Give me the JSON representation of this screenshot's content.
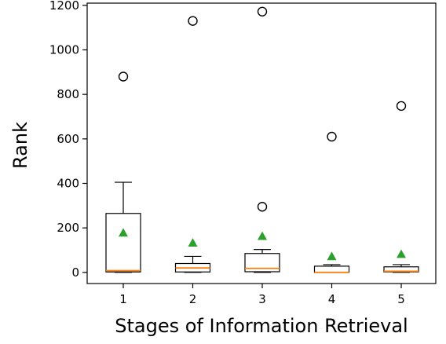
{
  "chart_data": {
    "type": "boxplot",
    "xlabel": "Stages of Information Retrieval",
    "ylabel": "Rank",
    "categories": [
      "1",
      "2",
      "3",
      "4",
      "5"
    ],
    "ylim": [
      -50,
      1210
    ],
    "yticks": [
      0,
      200,
      400,
      600,
      800,
      1000,
      1200
    ],
    "grid": false,
    "colors": {
      "box": "#000000",
      "median": "#ff7f0e",
      "mean": "#2ca02c",
      "flier": "#000000"
    },
    "boxes": [
      {
        "category": "1",
        "whisker_low": 0,
        "q1": 2,
        "median": 8,
        "q3": 265,
        "whisker_high": 405,
        "mean": 178,
        "fliers": [
          880
        ]
      },
      {
        "category": "2",
        "whisker_low": 0,
        "q1": 2,
        "median": 20,
        "q3": 40,
        "whisker_high": 72,
        "mean": 133,
        "fliers": [
          1130
        ]
      },
      {
        "category": "3",
        "whisker_low": 0,
        "q1": 3,
        "median": 18,
        "q3": 85,
        "whisker_high": 103,
        "mean": 163,
        "fliers": [
          295,
          1172
        ]
      },
      {
        "category": "4",
        "whisker_low": 0,
        "q1": 0,
        "median": 0,
        "q3": 28,
        "whisker_high": 35,
        "mean": 72,
        "fliers": [
          610
        ]
      },
      {
        "category": "5",
        "whisker_low": 0,
        "q1": 2,
        "median": 5,
        "q3": 25,
        "whisker_high": 35,
        "mean": 82,
        "fliers": [
          748
        ]
      }
    ]
  }
}
